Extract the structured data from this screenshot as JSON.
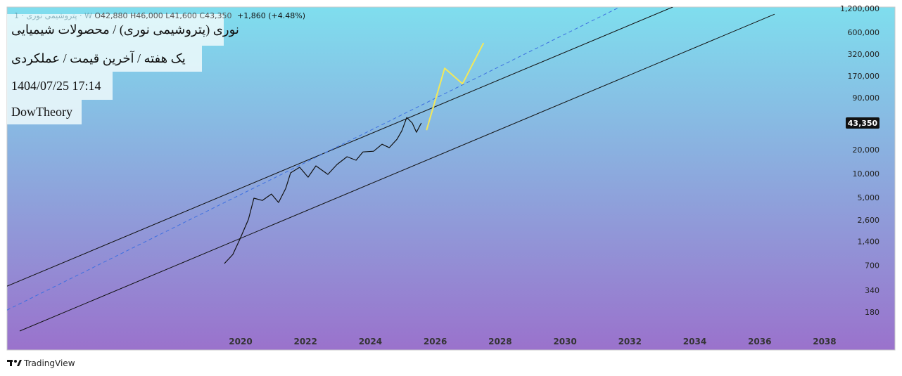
{
  "header": {
    "title": "نوری (پتروشیمی نوری) / محصولات شیمیایی",
    "subtitle": "یک هفته / آخرین قیمت / عملکردی",
    "timestamp": "1404/07/25 17:14",
    "author": "DowTheory",
    "symbol": "پتروشیمی نوری · 1 · W",
    "ohlc": "O42,880  H46,000  L41,600  C43,350",
    "change": "+1,860 (+4.48%)"
  },
  "footer": {
    "brand": "TradingView"
  },
  "chart_data": {
    "type": "line",
    "log_scale": true,
    "grid": false,
    "xlim": [
      2012.8,
      2038.5
    ],
    "xticks": [
      2020,
      2022,
      2024,
      2026,
      2028,
      2030,
      2032,
      2034,
      2036,
      2038
    ],
    "ylim": [
      60,
      1250000
    ],
    "yticks": [
      180,
      340,
      700,
      {
        "value": 1400,
        "label": "1,400"
      },
      {
        "value": 2600,
        "label": "2,600"
      },
      {
        "value": 5000,
        "label": "5,000"
      },
      {
        "value": 10000,
        "label": "10,000"
      },
      {
        "value": 20000,
        "label": "20,000"
      },
      {
        "value": 90000,
        "label": "90,000"
      },
      {
        "value": 170000,
        "label": "170,000"
      },
      {
        "value": 320000,
        "label": "320,000"
      },
      {
        "value": 600000,
        "label": "600,000"
      },
      {
        "value": 1200000,
        "label": "1,200,000"
      }
    ],
    "last_price": {
      "value": 43350,
      "label": "43,350"
    },
    "series": [
      {
        "color": "#111111",
        "style": "solid",
        "width": 1.2,
        "x": [
          2019.5,
          2019.76,
          2019.98,
          2020.24,
          2020.41,
          2020.67,
          2020.95,
          2021.17,
          2021.39,
          2021.54,
          2021.82,
          2022.08,
          2022.32,
          2022.69,
          2022.97,
          2023.28,
          2023.56,
          2023.77,
          2024.1,
          2024.36,
          2024.58,
          2024.82,
          2024.97,
          2025.12,
          2025.29,
          2025.42,
          2025.57
        ],
        "values": [
          735,
          957,
          1500,
          2650,
          4890,
          4590,
          5520,
          4320,
          6500,
          10200,
          12000,
          9000,
          12500,
          9770,
          13000,
          16300,
          14700,
          18700,
          19100,
          23400,
          21200,
          27000,
          34500,
          50800,
          43300,
          33100,
          43350
        ]
      },
      {
        "color": "#111111",
        "style": "solid",
        "width": 1,
        "x": [
          2012.8,
          2033.32
        ],
        "values": [
          382,
          1250000
        ]
      },
      {
        "color": "#111111",
        "style": "solid",
        "width": 1,
        "x": [
          2013.19,
          2036.46
        ],
        "values": [
          104,
          1016000
        ]
      },
      {
        "color": "#3d6fe0",
        "style": "dashed",
        "width": 1,
        "x": [
          2012.8,
          2031.69
        ],
        "values": [
          191,
          1250000
        ]
      },
      {
        "color": "#f2e85a",
        "style": "solid",
        "width": 2,
        "x": [
          2025.73,
          2026.29,
          2026.84,
          2027.49
        ],
        "values": [
          35200,
          212000,
          135000,
          441000
        ]
      }
    ]
  }
}
